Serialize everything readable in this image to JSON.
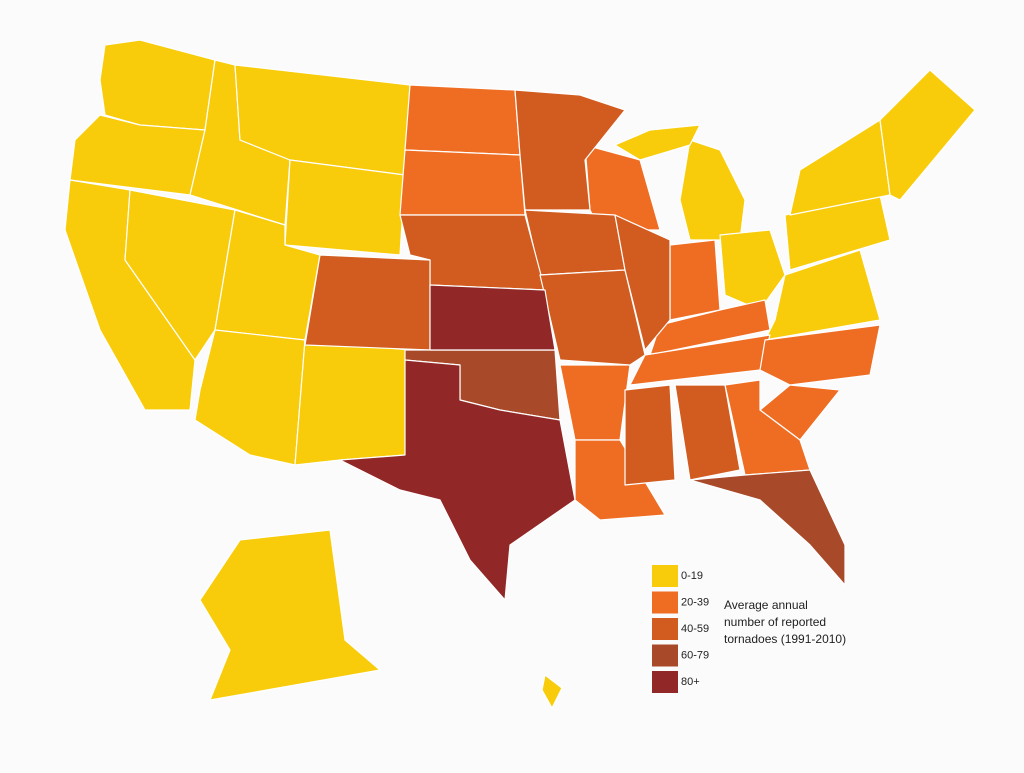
{
  "legend": {
    "items": [
      {
        "label": "0-19",
        "color": "#f8cc0a"
      },
      {
        "label": "20-39",
        "color": "#ef6d23"
      },
      {
        "label": "40-59",
        "color": "#d25c1f"
      },
      {
        "label": "60-79",
        "color": "#a84a2a"
      },
      {
        "label": "80+",
        "color": "#912726"
      }
    ],
    "caption": [
      "Average annual",
      "number of reported",
      "tornadoes (1991-2010)"
    ]
  }
}
